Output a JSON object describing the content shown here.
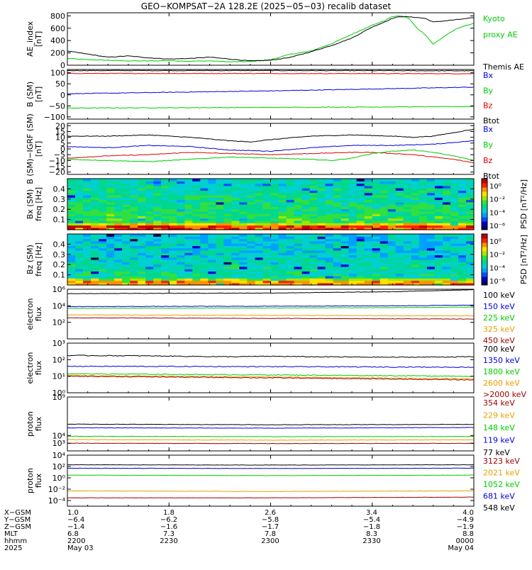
{
  "title": "GEO−KOMPSAT−2A 128.2E (2025−05−03) recalib dataset",
  "colors": {
    "black": "#000000",
    "green": "#00cc00",
    "blue": "#0000dd",
    "red": "#dd0000",
    "orange": "#e6a000",
    "darkred": "#990000"
  },
  "panels": [
    {
      "id": "ae",
      "type": "line",
      "ylabel": [
        "AE_index",
        "[nT]"
      ],
      "ylim": [
        0,
        850
      ],
      "yticks": [
        0,
        200,
        400,
        600,
        800
      ],
      "yticklabels": [
        "0",
        "200",
        "400",
        "600",
        "800"
      ],
      "scale": "linear",
      "legend": [
        {
          "text": "Kyoto",
          "color": "green"
        },
        {
          "text": "proxy AE",
          "color": "green"
        },
        {
          "text": "",
          "color": "black"
        },
        {
          "text": "Themis AE",
          "color": "black"
        }
      ],
      "series": [
        {
          "name": "Kyoto proxy AE",
          "color": "green",
          "x": [
            0,
            0.05,
            0.1,
            0.15,
            0.2,
            0.25,
            0.3,
            0.35,
            0.4,
            0.45,
            0.5,
            0.55,
            0.6,
            0.65,
            0.7,
            0.75,
            0.78,
            0.8,
            0.82,
            0.84,
            0.86,
            0.88,
            0.9,
            0.93,
            0.96,
            1.0
          ],
          "y": [
            110,
            90,
            80,
            70,
            70,
            75,
            65,
            70,
            55,
            60,
            90,
            180,
            230,
            350,
            500,
            650,
            720,
            790,
            800,
            760,
            600,
            500,
            340,
            480,
            600,
            680
          ]
        },
        {
          "name": "Themis AE",
          "color": "black",
          "x": [
            0,
            0.05,
            0.1,
            0.15,
            0.2,
            0.25,
            0.3,
            0.35,
            0.4,
            0.45,
            0.5,
            0.55,
            0.6,
            0.65,
            0.7,
            0.75,
            0.78,
            0.8,
            0.82,
            0.85,
            0.88,
            0.9,
            0.93,
            0.96,
            1.0
          ],
          "y": [
            230,
            180,
            130,
            150,
            120,
            100,
            110,
            130,
            100,
            70,
            80,
            130,
            220,
            320,
            440,
            620,
            700,
            760,
            790,
            780,
            760,
            700,
            720,
            740,
            770
          ]
        }
      ]
    },
    {
      "id": "b_sm",
      "type": "line",
      "ylabel": [
        "B (SM)",
        "[nT]"
      ],
      "ylim": [
        -110,
        115
      ],
      "yticks": [
        -100,
        -50,
        0,
        50,
        100
      ],
      "yticklabels": [
        "−100",
        "−50",
        "0",
        "50",
        "100"
      ],
      "scale": "linear",
      "legend": [
        {
          "text": "Bx",
          "color": "blue"
        },
        {
          "text": "By",
          "color": "green"
        },
        {
          "text": "Bz",
          "color": "red"
        },
        {
          "text": "Btot",
          "color": "black"
        }
      ],
      "series": [
        {
          "name": "Btot",
          "color": "black",
          "x": [
            0,
            0.5,
            1
          ],
          "y": [
            110,
            110,
            109
          ]
        },
        {
          "name": "Bz",
          "color": "red",
          "x": [
            0,
            0.5,
            1
          ],
          "y": [
            97,
            97,
            96
          ]
        },
        {
          "name": "Bx",
          "color": "blue",
          "x": [
            0,
            0.5,
            1
          ],
          "y": [
            5,
            18,
            35
          ]
        },
        {
          "name": "By",
          "color": "green",
          "x": [
            0,
            0.5,
            1
          ],
          "y": [
            -60,
            -57,
            -53
          ]
        }
      ]
    },
    {
      "id": "b_igrf",
      "type": "line",
      "ylabel": [
        "B (SM)−IGRF (SM)",
        "[nT]"
      ],
      "ylim": [
        -22,
        22
      ],
      "yticks": [
        -20,
        -15,
        -10,
        -5,
        0,
        5,
        10,
        15,
        20
      ],
      "yticklabels": [
        "−20",
        "−15",
        "−10",
        "−5",
        "0",
        "5",
        "10",
        "15",
        "20"
      ],
      "scale": "linear",
      "legend": [
        {
          "text": "Bx",
          "color": "blue"
        },
        {
          "text": "By",
          "color": "green"
        },
        {
          "text": "Bz",
          "color": "red"
        },
        {
          "text": "Btot",
          "color": "black"
        }
      ],
      "series": [
        {
          "name": "Btot",
          "color": "black",
          "x": [
            0,
            0.1,
            0.2,
            0.3,
            0.4,
            0.45,
            0.5,
            0.6,
            0.7,
            0.8,
            0.85,
            0.9,
            0.95,
            1
          ],
          "y": [
            11,
            11,
            12,
            10,
            7,
            6,
            8,
            11,
            12,
            11,
            10,
            11,
            14,
            17
          ]
        },
        {
          "name": "Bx",
          "color": "blue",
          "x": [
            0,
            0.1,
            0.2,
            0.3,
            0.4,
            0.5,
            0.6,
            0.7,
            0.8,
            0.9,
            1
          ],
          "y": [
            2,
            1,
            3,
            2,
            -1,
            -2,
            1,
            3,
            3,
            4,
            7
          ]
        },
        {
          "name": "Bz",
          "color": "red",
          "x": [
            0,
            0.1,
            0.2,
            0.3,
            0.4,
            0.5,
            0.6,
            0.7,
            0.75,
            0.8,
            0.85,
            0.9,
            0.95,
            1
          ],
          "y": [
            -8,
            -6,
            -5,
            -3,
            -4,
            -5,
            -4,
            -3,
            -3,
            -4,
            -5,
            -7,
            -9,
            -12
          ]
        },
        {
          "name": "By",
          "color": "green",
          "x": [
            0,
            0.1,
            0.2,
            0.3,
            0.4,
            0.5,
            0.6,
            0.65,
            0.7,
            0.75,
            0.8,
            0.85,
            0.9,
            0.95,
            1
          ],
          "y": [
            -9,
            -10,
            -11,
            -9,
            -7,
            -8,
            -9,
            -10,
            -8,
            -4,
            -2,
            -1,
            -3,
            -6,
            -10
          ]
        }
      ]
    },
    {
      "id": "bx_spec",
      "type": "spectrogram",
      "ylabel": [
        "Bx (SM)",
        "freq [Hz]"
      ],
      "ylim": [
        0,
        0.5
      ],
      "yticks": [
        0.1,
        0.2,
        0.3,
        0.4
      ],
      "yticklabels": [
        "0.1",
        "0.2",
        "0.3",
        "0.4"
      ],
      "colorbar": {
        "label": "PSD [nT²/Hz]",
        "ticks": [
          "10⁰",
          "10⁻²",
          "10⁻⁴",
          "10⁻⁶"
        ]
      }
    },
    {
      "id": "bz_spec",
      "type": "spectrogram",
      "ylabel": [
        "Bz (SM)",
        "freq [Hz]"
      ],
      "ylim": [
        0,
        0.5
      ],
      "yticks": [
        0.1,
        0.2,
        0.3,
        0.4
      ],
      "yticklabels": [
        "0.1",
        "0.2",
        "0.3",
        "0.4"
      ],
      "colorbar": {
        "label": "PSD [nT²/Hz]",
        "ticks": [
          "10⁰",
          "10⁻²",
          "10⁻⁴",
          "10⁻⁶"
        ]
      }
    },
    {
      "id": "e_flux1",
      "type": "line",
      "scale": "log",
      "ylabel": [
        "electron",
        "flux"
      ],
      "ylim": [
        1,
        1000000
      ],
      "yticks": [
        100,
        10000,
        1000000
      ],
      "yticklabels": [
        "10²",
        "10⁴",
        "10⁶"
      ],
      "legend": [
        {
          "text": "100 keV",
          "color": "black"
        },
        {
          "text": "150 keV",
          "color": "blue"
        },
        {
          "text": "225 keV",
          "color": "green"
        },
        {
          "text": "325 keV",
          "color": "orange"
        },
        {
          "text": "450 keV",
          "color": "darkred"
        }
      ],
      "series": [
        {
          "name": "100 keV",
          "color": "black",
          "x": [
            0,
            0.5,
            0.8,
            1
          ],
          "y": [
            300000,
            350000,
            500000,
            900000
          ]
        },
        {
          "name": "150 keV",
          "color": "blue",
          "x": [
            0,
            0.5,
            0.8,
            1
          ],
          "y": [
            8000,
            9000,
            10000,
            12000
          ]
        },
        {
          "name": "225 keV",
          "color": "green",
          "x": [
            0,
            0.5,
            0.8,
            1
          ],
          "y": [
            5000,
            5500,
            6000,
            7000
          ]
        },
        {
          "name": "325 keV",
          "color": "orange",
          "x": [
            0,
            0.5,
            1
          ],
          "y": [
            800,
            700,
            600
          ]
        },
        {
          "name": "450 keV",
          "color": "darkred",
          "x": [
            0,
            0.5,
            1
          ],
          "y": [
            350,
            300,
            250
          ]
        }
      ]
    },
    {
      "id": "e_flux2",
      "type": "line",
      "scale": "log",
      "ylabel": [
        "electron",
        "flux"
      ],
      "ylim": [
        1,
        1000
      ],
      "yticks": [
        1,
        10,
        100,
        1000
      ],
      "yticklabels": [
        "10⁰",
        "10¹",
        "10²",
        "10³"
      ],
      "legend": [
        {
          "text": "700 keV",
          "color": "black"
        },
        {
          "text": "1350 keV",
          "color": "blue"
        },
        {
          "text": "1800 keV",
          "color": "green"
        },
        {
          "text": "2600 keV",
          "color": "orange"
        },
        {
          "text": ">2000 keV",
          "color": "darkred"
        }
      ],
      "series": [
        {
          "name": "700 keV",
          "color": "black",
          "x": [
            0,
            0.2,
            0.4,
            0.5,
            0.6,
            0.8,
            1
          ],
          "y": [
            180,
            170,
            150,
            160,
            150,
            140,
            150
          ]
        },
        {
          "name": "1350 keV",
          "color": "blue",
          "x": [
            0,
            0.5,
            1
          ],
          "y": [
            40,
            38,
            35
          ]
        },
        {
          "name": "1800 keV",
          "color": "green",
          "x": [
            0,
            0.5,
            1
          ],
          "y": [
            14,
            12,
            10
          ]
        },
        {
          "name": "2600 keV",
          "color": "orange",
          "x": [
            0,
            0.5,
            1
          ],
          "y": [
            11,
            9,
            7
          ]
        },
        {
          "name": ">2000 keV",
          "color": "darkred",
          "x": [
            0,
            0.5,
            1
          ],
          "y": [
            10,
            8,
            6
          ]
        }
      ]
    },
    {
      "id": "p_flux1",
      "type": "line",
      "scale": "log",
      "ylabel": [
        "proton",
        "flux"
      ],
      "ylim": [
        100,
        1000000000
      ],
      "yticks": [
        1000,
        10000,
        1000000000
      ],
      "yticklabels": [
        "10³",
        "10⁴",
        "10⁹"
      ],
      "legend": [
        {
          "text": "354 keV",
          "color": "darkred"
        },
        {
          "text": "229 keV",
          "color": "orange"
        },
        {
          "text": "148 keV",
          "color": "green"
        },
        {
          "text": "119 keV",
          "color": "blue"
        },
        {
          "text": "77 keV",
          "color": "black"
        }
      ],
      "series": [
        {
          "name": "77 keV",
          "color": "black",
          "x": [
            0,
            0.5,
            1
          ],
          "y": [
            300000,
            250000,
            280000
          ]
        },
        {
          "name": "119 keV",
          "color": "blue",
          "x": [
            0,
            0.5,
            1
          ],
          "y": [
            100000,
            90000,
            110000
          ]
        },
        {
          "name": "148 keV",
          "color": "green",
          "x": [
            0,
            0.5,
            1
          ],
          "y": [
            8000,
            7000,
            7500
          ]
        },
        {
          "name": "229 keV",
          "color": "orange",
          "x": [
            0,
            0.5,
            1
          ],
          "y": [
            3000,
            2500,
            2800
          ]
        },
        {
          "name": "354 keV",
          "color": "darkred",
          "x": [
            0,
            0.5,
            1
          ],
          "y": [
            1000,
            900,
            950
          ]
        }
      ]
    },
    {
      "id": "p_flux2",
      "type": "line",
      "scale": "log",
      "ylabel": [
        "proton",
        "flux"
      ],
      "ylim": [
        1e-05,
        10000
      ],
      "yticks": [
        0.0001,
        0.01,
        1,
        100,
        10000
      ],
      "yticklabels": [
        "10⁻⁴",
        "10⁻²",
        "10⁰",
        "10²",
        "10⁴"
      ],
      "legend": [
        {
          "text": "3123 keV",
          "color": "darkred"
        },
        {
          "text": "2021 keV",
          "color": "orange"
        },
        {
          "text": "1052 keV",
          "color": "green"
        },
        {
          "text": "681 keV",
          "color": "blue"
        },
        {
          "text": "548 keV",
          "color": "black"
        }
      ],
      "series": [
        {
          "name": "548 keV",
          "color": "black",
          "x": [
            0,
            0.5,
            1
          ],
          "y": [
            200,
            180,
            200
          ]
        },
        {
          "name": "681 keV",
          "color": "blue",
          "x": [
            0,
            0.5,
            1
          ],
          "y": [
            50,
            45,
            50
          ]
        },
        {
          "name": "1052 keV",
          "color": "green",
          "x": [
            0,
            0.5,
            1
          ],
          "y": [
            3,
            2.5,
            3
          ]
        },
        {
          "name": "2021 keV",
          "color": "orange",
          "x": [
            0,
            0.5,
            1
          ],
          "y": [
            0.005,
            0.004,
            0.005
          ]
        },
        {
          "name": "3123 keV",
          "color": "darkred",
          "x": [
            0,
            0.5,
            1
          ],
          "y": [
            0.0003,
            0.0003,
            0.0004
          ]
        }
      ]
    }
  ],
  "footer": {
    "rowlabels": [
      "X−GSM",
      "Y−GSM",
      "Z−GSM",
      "MLT",
      "hhmm",
      "2025"
    ],
    "columns": [
      [
        "1.0",
        "−6.4",
        "−1.4",
        "6.8",
        "2200",
        "May 03"
      ],
      [
        "1.8",
        "−6.2",
        "−1.6",
        "7.3",
        "2230",
        ""
      ],
      [
        "2.6",
        "−5.8",
        "−1.7",
        "7.8",
        "2300",
        ""
      ],
      [
        "3.4",
        "−5.4",
        "−1.8",
        "8.3",
        "2330",
        ""
      ],
      [
        "4.0",
        "−4.9",
        "−1.9",
        "8.8",
        "0000",
        "May 04"
      ]
    ]
  }
}
